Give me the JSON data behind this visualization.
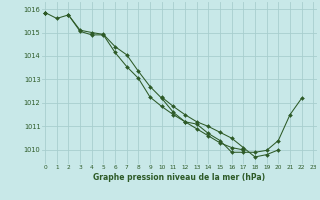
{
  "x": [
    0,
    1,
    2,
    3,
    4,
    5,
    6,
    7,
    8,
    9,
    10,
    11,
    12,
    13,
    14,
    15,
    16,
    17,
    18,
    19,
    20,
    21,
    22,
    23
  ],
  "series1": [
    1015.85,
    1015.6,
    1015.75,
    1015.05,
    1014.9,
    1014.9,
    1014.15,
    1013.55,
    1013.05,
    1012.25,
    1011.85,
    1011.5,
    1011.2,
    1011.1,
    1010.7,
    1010.4,
    1009.9,
    1009.9,
    1009.9,
    1009.98,
    1010.4,
    1011.5,
    1012.2,
    null
  ],
  "series2": [
    1015.85,
    null,
    null,
    null,
    null,
    null,
    null,
    null,
    null,
    null,
    1012.25,
    1011.85,
    1011.5,
    1011.2,
    1011.0,
    1010.75,
    1010.5,
    1010.1,
    1009.7,
    1009.8,
    1010.0,
    null,
    null,
    null
  ],
  "series3": [
    1015.85,
    null,
    1015.75,
    1015.1,
    1015.0,
    1014.92,
    1014.4,
    1014.05,
    1013.35,
    1012.7,
    1012.2,
    1011.6,
    1011.2,
    1010.9,
    1010.6,
    1010.3,
    1010.1,
    1010.0,
    null,
    null,
    null,
    null,
    null,
    null
  ],
  "line_color": "#2d5a27",
  "bg_color": "#c8e8e8",
  "grid_color": "#a8cece",
  "text_color": "#2d5a27",
  "xlabel": "Graphe pression niveau de la mer (hPa)",
  "ylim": [
    1009.4,
    1016.3
  ],
  "xlim": [
    -0.3,
    23.3
  ],
  "yticks": [
    1010,
    1011,
    1012,
    1013,
    1014,
    1015,
    1016
  ],
  "xticks": [
    0,
    1,
    2,
    3,
    4,
    5,
    6,
    7,
    8,
    9,
    10,
    11,
    12,
    13,
    14,
    15,
    16,
    17,
    18,
    19,
    20,
    21,
    22,
    23
  ]
}
